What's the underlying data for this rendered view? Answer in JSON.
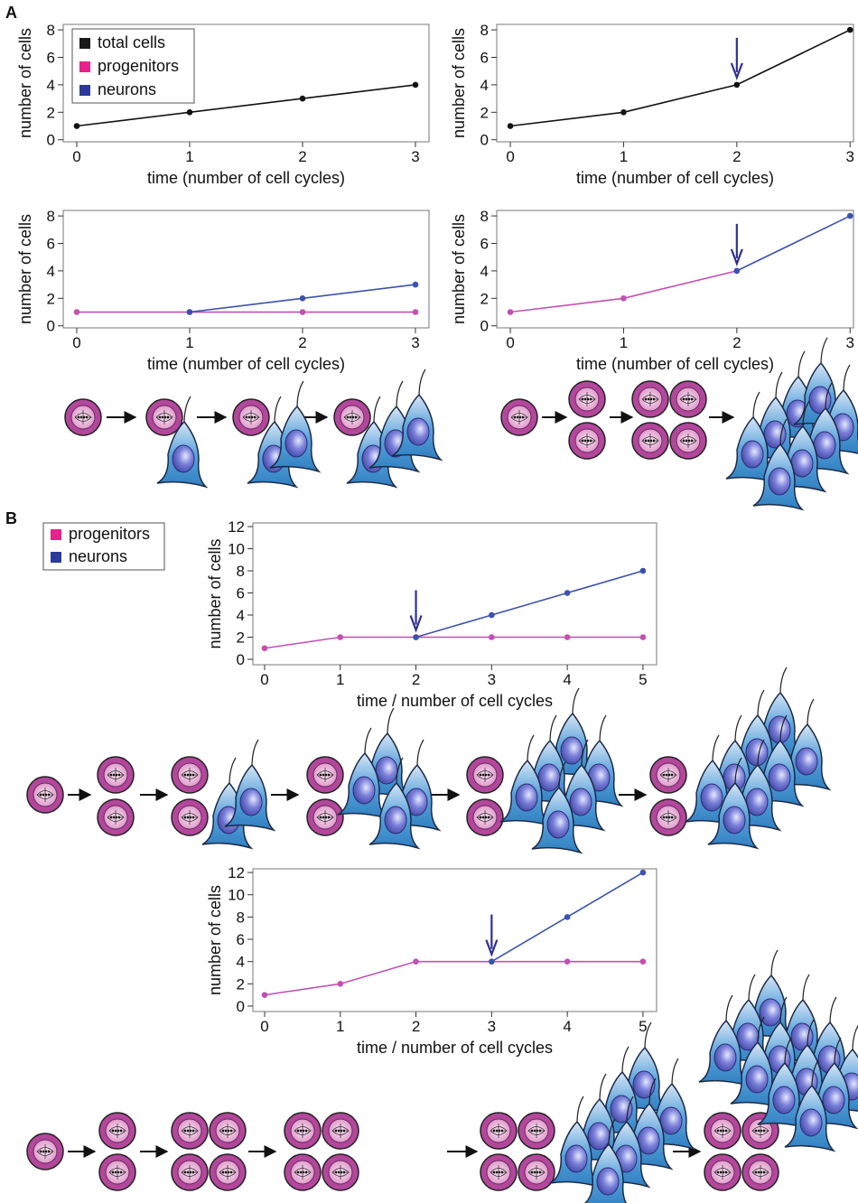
{
  "panels": [
    "A",
    "B"
  ],
  "legend_a": {
    "items": [
      {
        "name": "total cells",
        "color": "#1a1a1a"
      },
      {
        "name": "progenitors",
        "color": "#e8218c"
      },
      {
        "name": "neurons",
        "color": "#2b3a9a"
      }
    ]
  },
  "legend_b": {
    "items": [
      {
        "name": "progenitors",
        "color": "#e8218c"
      },
      {
        "name": "neurons",
        "color": "#2b3a9a"
      }
    ]
  },
  "chart_data": [
    {
      "type": "line",
      "xlabel": "time (number of cell cycles)",
      "ylabel": "number of cells",
      "x": [
        0,
        1,
        2,
        3
      ],
      "xlim": [
        -0.12,
        3.12
      ],
      "xticks": [
        0,
        1,
        2,
        3
      ],
      "ylim": [
        -0.15,
        8.4
      ],
      "yticks": [
        0,
        2,
        4,
        6,
        8
      ],
      "series": [
        {
          "name": "total cells",
          "color": "#111111",
          "values": [
            1,
            2,
            3,
            4
          ]
        }
      ]
    },
    {
      "type": "line",
      "xlabel": "time (number of cell cycles)",
      "ylabel": "number of cells",
      "x": [
        0,
        1,
        2,
        3
      ],
      "xlim": [
        -0.12,
        3.03
      ],
      "xticks": [
        0,
        1,
        2,
        3
      ],
      "ylim": [
        -0.15,
        8.4
      ],
      "yticks": [
        0,
        2,
        4,
        6,
        8
      ],
      "arrow_x": 2,
      "series": [
        {
          "name": "total cells",
          "color": "#111111",
          "values": [
            1,
            2,
            4,
            8
          ]
        }
      ]
    },
    {
      "type": "line",
      "xlabel": "time (number of cell cycles)",
      "ylabel": "number of cells",
      "x": [
        0,
        1,
        2,
        3
      ],
      "xlim": [
        -0.12,
        3.12
      ],
      "xticks": [
        0,
        1,
        2,
        3
      ],
      "ylim": [
        -0.15,
        8.4
      ],
      "yticks": [
        0,
        2,
        4,
        6,
        8
      ],
      "series": [
        {
          "name": "progenitors",
          "color": "#c44fb2",
          "values": [
            1,
            1,
            1,
            1
          ]
        },
        {
          "name": "neurons",
          "color": "#3a52b0",
          "values": [
            null,
            1,
            2,
            3
          ]
        }
      ]
    },
    {
      "type": "line",
      "xlabel": "time (number of cell cycles)",
      "ylabel": "number of cells",
      "x": [
        0,
        1,
        2,
        3
      ],
      "xlim": [
        -0.12,
        3.03
      ],
      "xticks": [
        0,
        1,
        2,
        3
      ],
      "ylim": [
        -0.15,
        8.4
      ],
      "yticks": [
        0,
        2,
        4,
        6,
        8
      ],
      "arrow_x": 2,
      "series": [
        {
          "name": "progenitors",
          "color": "#c44fb2",
          "values": [
            1,
            2,
            4,
            null
          ]
        },
        {
          "name": "neurons",
          "color": "#3a52b0",
          "values": [
            null,
            null,
            4,
            8
          ]
        }
      ]
    },
    {
      "type": "line",
      "xlabel": "time / number of cell cycles",
      "ylabel": "number of cells",
      "x": [
        0,
        1,
        2,
        3,
        4,
        5
      ],
      "xlim": [
        -0.155,
        5.18
      ],
      "xticks": [
        0,
        1,
        2,
        3,
        4,
        5
      ],
      "ylim": [
        -0.49,
        12.33
      ],
      "yticks": [
        0,
        2,
        4,
        6,
        8,
        10,
        12
      ],
      "arrow_x": 2,
      "series": [
        {
          "name": "progenitors",
          "color": "#c44fb2",
          "values": [
            1,
            2,
            2,
            2,
            2,
            2
          ]
        },
        {
          "name": "neurons",
          "color": "#3a52b0",
          "values": [
            null,
            null,
            2,
            4,
            6,
            8
          ]
        }
      ]
    },
    {
      "type": "line",
      "xlabel": "time / number of cell cycles",
      "ylabel": "number of cells",
      "x": [
        0,
        1,
        2,
        3,
        4,
        5
      ],
      "xlim": [
        -0.155,
        5.18
      ],
      "xticks": [
        0,
        1,
        2,
        3,
        4,
        5
      ],
      "ylim": [
        -0.49,
        12.33
      ],
      "yticks": [
        0,
        2,
        4,
        6,
        8,
        10,
        12
      ],
      "arrow_x": 3,
      "series": [
        {
          "name": "progenitors",
          "color": "#c44fb2",
          "values": [
            1,
            2,
            4,
            4,
            4,
            4
          ]
        },
        {
          "name": "neurons",
          "color": "#3a52b0",
          "values": [
            null,
            null,
            null,
            4,
            8,
            12
          ]
        }
      ]
    }
  ]
}
